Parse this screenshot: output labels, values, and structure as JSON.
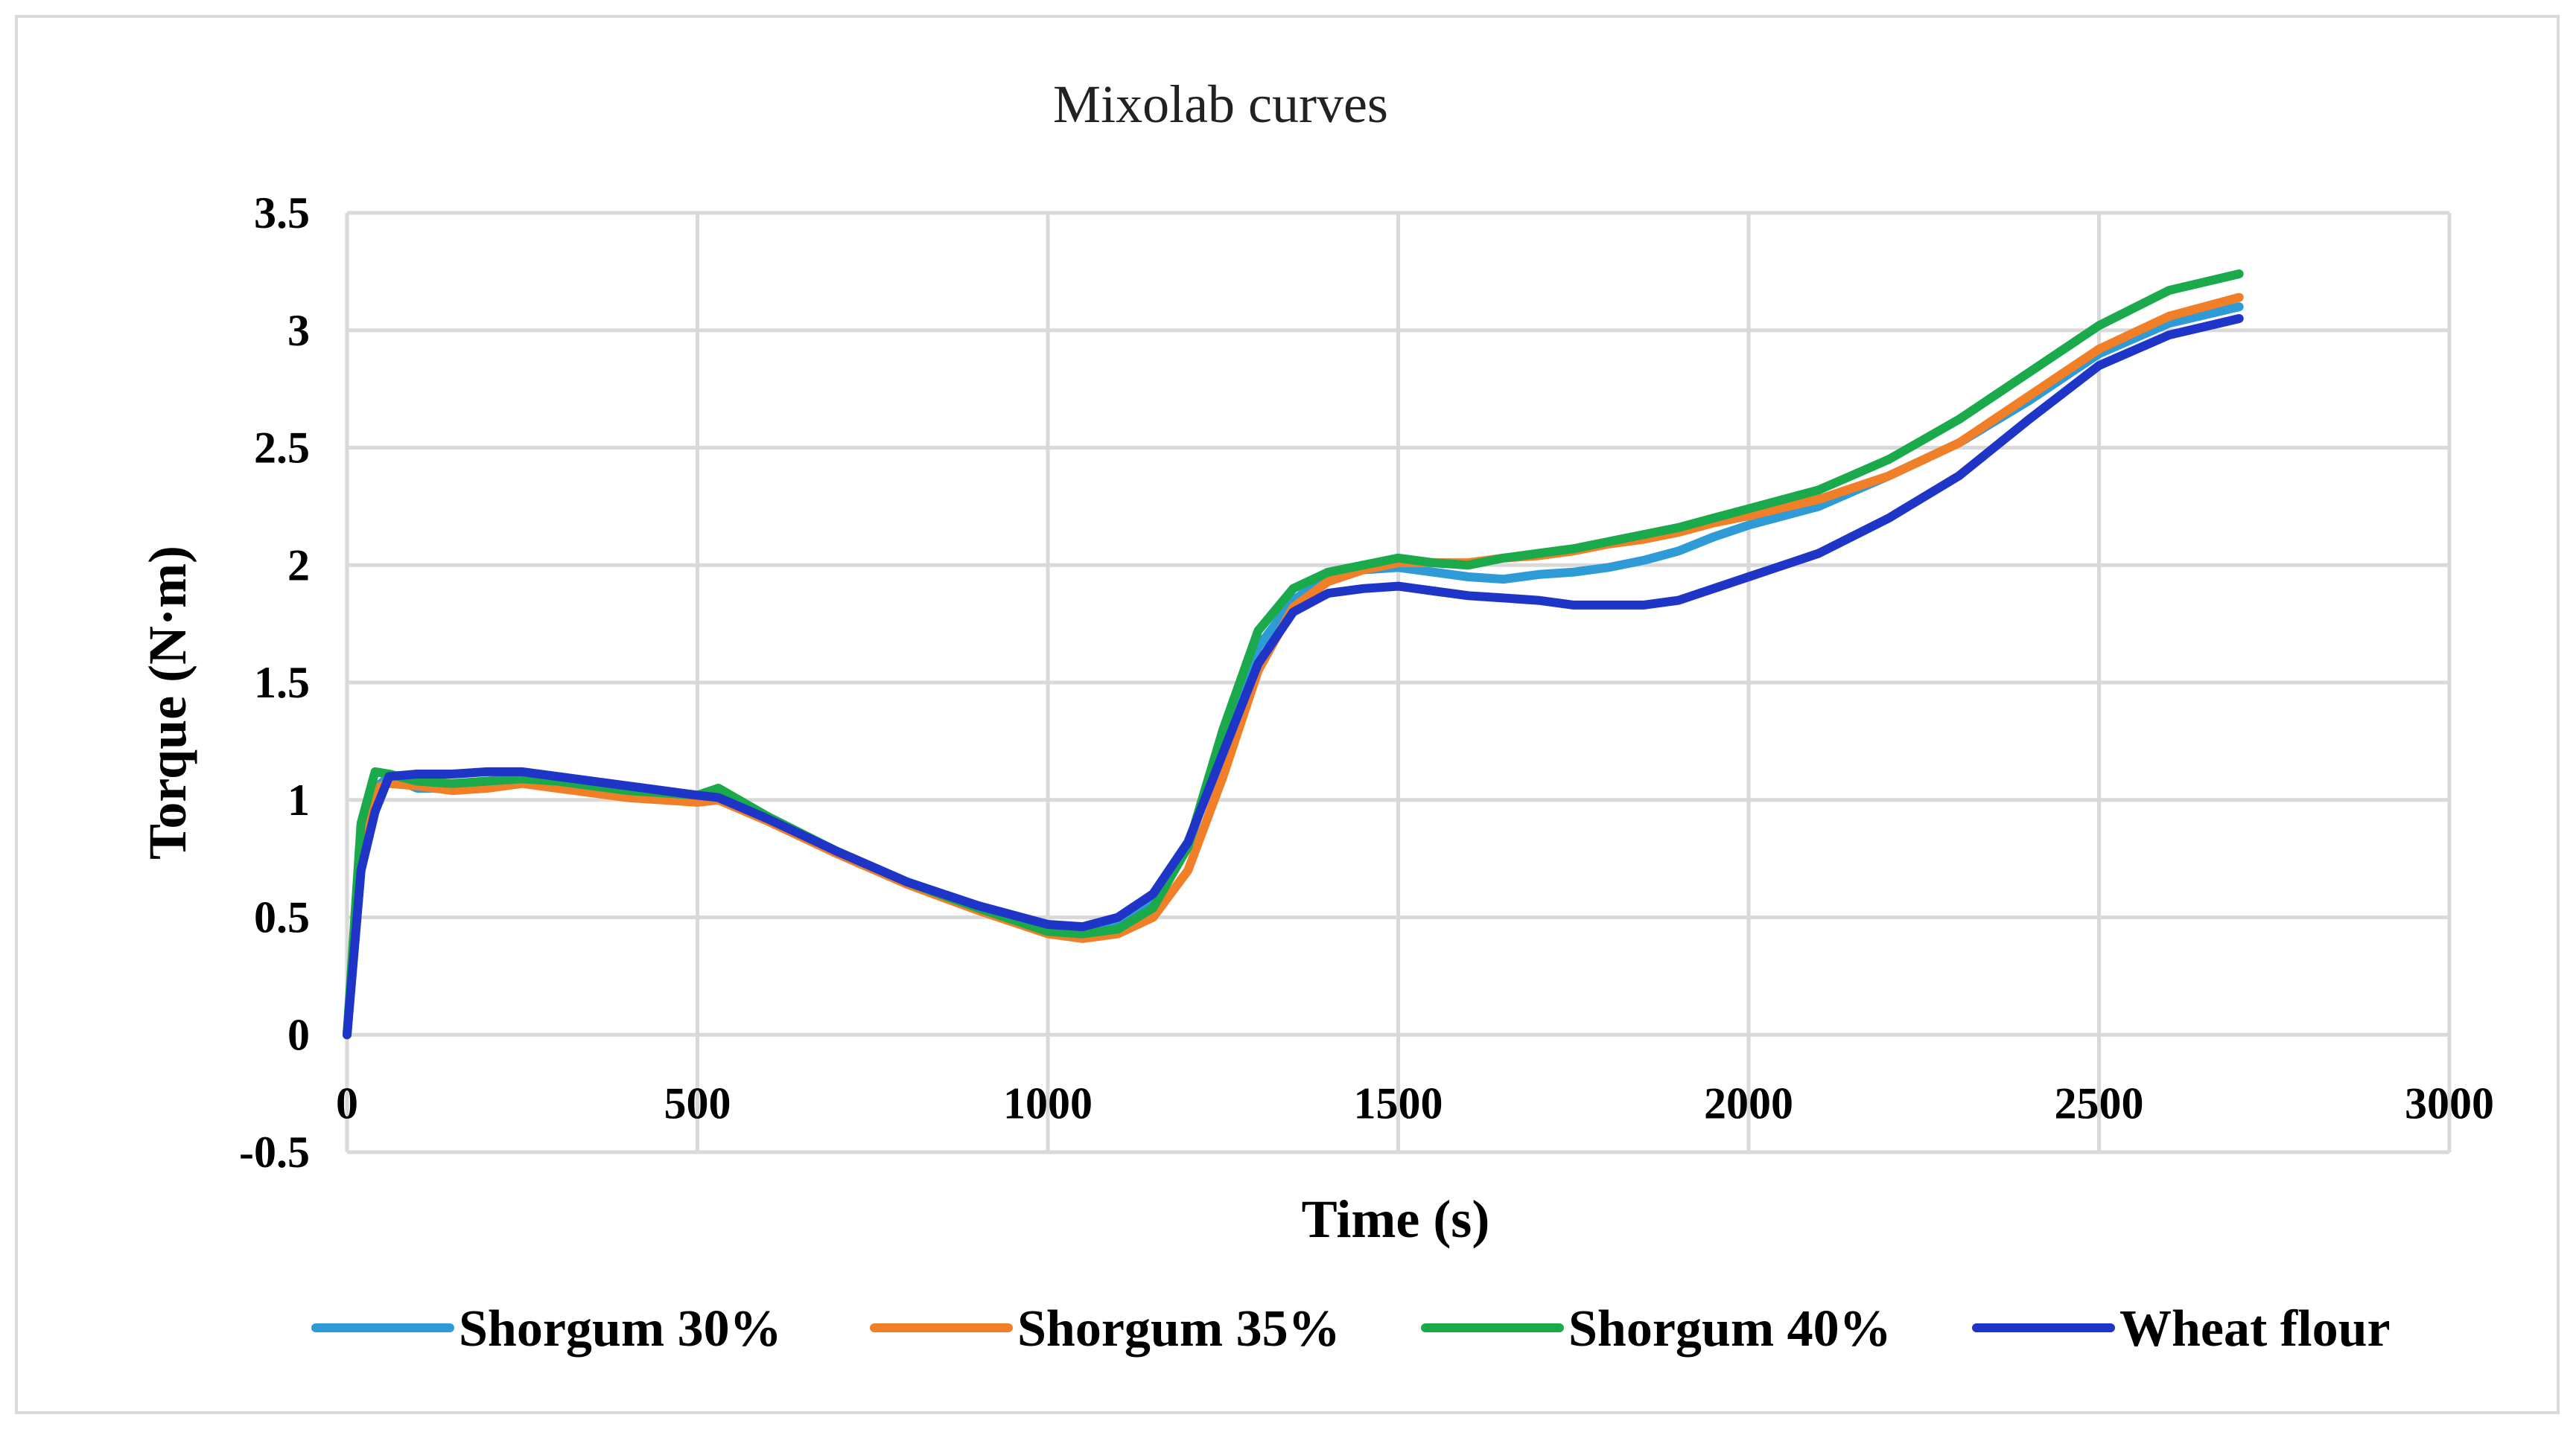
{
  "chart_data": {
    "type": "line",
    "title": "Mixolab curves",
    "xlabel": "Time (s)",
    "ylabel": "Torque (N·m)",
    "xlim": [
      0,
      3000
    ],
    "ylim": [
      -0.5,
      3.5
    ],
    "x_ticks": [
      0,
      500,
      1000,
      1500,
      2000,
      2500,
      3000
    ],
    "x_tick_labels": [
      "0",
      "500",
      "1000",
      "1500",
      "2000",
      "2500",
      "3000"
    ],
    "y_ticks": [
      -0.5,
      0,
      0.5,
      1,
      1.5,
      2,
      2.5,
      3,
      3.5
    ],
    "y_tick_labels": [
      "-0.5",
      "0",
      "0.5",
      "1",
      "1.5",
      "2",
      "2.5",
      "3",
      "3.5"
    ],
    "grid": true,
    "legend_position": "bottom",
    "series": [
      {
        "name": "Shorgum 30%",
        "color": "#2e9bd6",
        "x": [
          0,
          20,
          40,
          60,
          100,
          150,
          200,
          250,
          300,
          400,
          500,
          530,
          600,
          700,
          800,
          900,
          1000,
          1050,
          1100,
          1150,
          1200,
          1250,
          1300,
          1350,
          1400,
          1450,
          1500,
          1550,
          1600,
          1650,
          1700,
          1750,
          1800,
          1850,
          1900,
          1950,
          2000,
          2100,
          2200,
          2300,
          2400,
          2500,
          2600,
          2700
        ],
        "y": [
          0,
          0.75,
          1.05,
          1.1,
          1.05,
          1.05,
          1.08,
          1.09,
          1.08,
          1.04,
          1.01,
          1.02,
          0.92,
          0.78,
          0.65,
          0.55,
          0.46,
          0.45,
          0.47,
          0.56,
          0.8,
          1.25,
          1.65,
          1.85,
          1.95,
          1.98,
          1.99,
          1.97,
          1.95,
          1.94,
          1.96,
          1.97,
          1.99,
          2.02,
          2.06,
          2.12,
          2.17,
          2.25,
          2.38,
          2.52,
          2.7,
          2.9,
          3.03,
          3.1
        ]
      },
      {
        "name": "Shorgum 35%",
        "color": "#f07f27",
        "x": [
          0,
          20,
          40,
          60,
          100,
          150,
          200,
          250,
          300,
          400,
          500,
          530,
          600,
          700,
          800,
          900,
          1000,
          1050,
          1100,
          1150,
          1200,
          1250,
          1300,
          1350,
          1400,
          1450,
          1500,
          1550,
          1600,
          1650,
          1700,
          1750,
          1800,
          1850,
          1900,
          1950,
          2000,
          2100,
          2200,
          2300,
          2400,
          2500,
          2600,
          2700
        ],
        "y": [
          0,
          0.8,
          1.05,
          1.07,
          1.06,
          1.04,
          1.05,
          1.07,
          1.05,
          1.01,
          0.99,
          1.0,
          0.91,
          0.77,
          0.64,
          0.53,
          0.43,
          0.41,
          0.43,
          0.5,
          0.7,
          1.1,
          1.55,
          1.82,
          1.93,
          1.98,
          2.01,
          2.01,
          2.01,
          2.03,
          2.04,
          2.06,
          2.09,
          2.11,
          2.14,
          2.18,
          2.21,
          2.28,
          2.38,
          2.52,
          2.72,
          2.92,
          3.06,
          3.14
        ]
      },
      {
        "name": "Shorgum 40%",
        "color": "#1aaa4c",
        "x": [
          0,
          20,
          40,
          60,
          100,
          150,
          200,
          250,
          300,
          400,
          500,
          530,
          600,
          700,
          800,
          900,
          1000,
          1050,
          1100,
          1150,
          1200,
          1250,
          1300,
          1350,
          1400,
          1450,
          1500,
          1550,
          1600,
          1650,
          1700,
          1750,
          1800,
          1850,
          1900,
          1950,
          2000,
          2100,
          2200,
          2300,
          2400,
          2500,
          2600,
          2700
        ],
        "y": [
          0,
          0.9,
          1.12,
          1.11,
          1.08,
          1.07,
          1.08,
          1.09,
          1.08,
          1.04,
          1.02,
          1.05,
          0.93,
          0.78,
          0.65,
          0.54,
          0.44,
          0.43,
          0.45,
          0.54,
          0.8,
          1.3,
          1.72,
          1.9,
          1.97,
          2.0,
          2.03,
          2.01,
          2.0,
          2.03,
          2.05,
          2.07,
          2.1,
          2.13,
          2.16,
          2.2,
          2.24,
          2.32,
          2.45,
          2.62,
          2.82,
          3.02,
          3.17,
          3.24
        ]
      },
      {
        "name": "Wheat flour",
        "color": "#1f35c7",
        "x": [
          0,
          20,
          40,
          60,
          100,
          150,
          200,
          250,
          300,
          400,
          500,
          530,
          600,
          700,
          800,
          900,
          1000,
          1050,
          1100,
          1150,
          1200,
          1250,
          1300,
          1350,
          1400,
          1450,
          1500,
          1550,
          1600,
          1650,
          1700,
          1750,
          1800,
          1850,
          1900,
          1950,
          2000,
          2100,
          2200,
          2300,
          2400,
          2500,
          2600,
          2700
        ],
        "y": [
          0,
          0.7,
          0.95,
          1.1,
          1.11,
          1.11,
          1.12,
          1.12,
          1.1,
          1.06,
          1.02,
          1.01,
          0.92,
          0.78,
          0.65,
          0.55,
          0.47,
          0.46,
          0.5,
          0.6,
          0.82,
          1.2,
          1.58,
          1.8,
          1.88,
          1.9,
          1.91,
          1.89,
          1.87,
          1.86,
          1.85,
          1.83,
          1.83,
          1.83,
          1.85,
          1.9,
          1.95,
          2.05,
          2.2,
          2.38,
          2.62,
          2.85,
          2.98,
          3.05
        ]
      }
    ]
  }
}
